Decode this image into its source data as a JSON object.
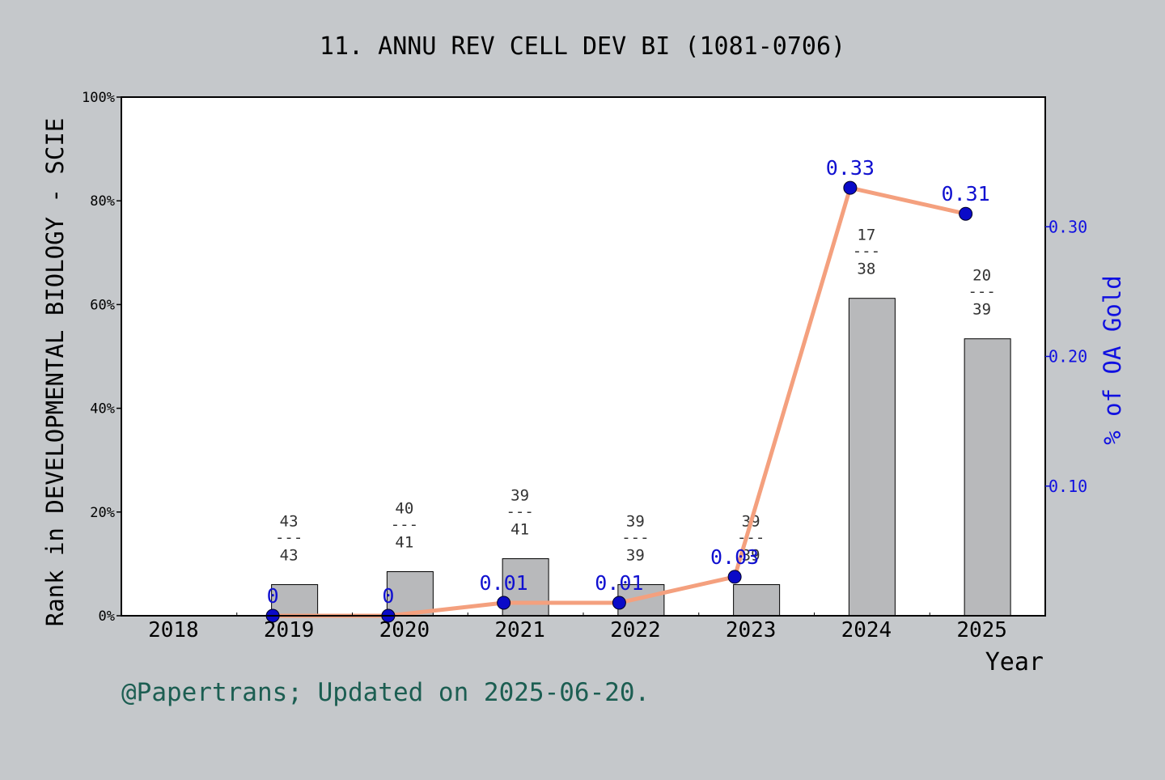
{
  "chart_data": {
    "type": "bar",
    "title": "11. ANNU REV CELL DEV BI (1081-0706)",
    "xlabel": "Year",
    "ylabel": "Rank in DEVELOPMENTAL BIOLOGY - SCIE",
    "y2label": "% of OA Gold",
    "categories": [
      "2018",
      "2019",
      "2020",
      "2021",
      "2022",
      "2023",
      "2024",
      "2025"
    ],
    "ylim": [
      0,
      100
    ],
    "y_ticks": [
      "0%",
      "20%",
      "40%",
      "60%",
      "80%",
      "100%"
    ],
    "y2lim": [
      0,
      0.4
    ],
    "y2_ticks": [
      "0.10",
      "0.20",
      "0.30"
    ],
    "y2_tick_values": [
      0.1,
      0.2,
      0.3
    ],
    "bars": {
      "values": [
        null,
        6,
        8.5,
        11,
        6,
        6,
        61.2,
        53.4
      ],
      "rank": [
        null,
        "43",
        "40",
        "39",
        "39",
        "39",
        "17",
        "20"
      ],
      "total": [
        null,
        "43",
        "41",
        "41",
        "39",
        "39",
        "38",
        "39"
      ],
      "separator": "---",
      "color": "#b8b9bb"
    },
    "line": {
      "values": [
        null,
        0,
        0,
        0.01,
        0.01,
        0.03,
        0.33,
        0.31
      ],
      "labels": [
        null,
        "0",
        "0",
        "0.01",
        "0.01",
        "0.03",
        "0.33",
        "0.31"
      ],
      "line_color": "#f4a07e",
      "marker_color": "#0a0ac8",
      "label_color": "#1010d0"
    },
    "footer": "@Papertrans; Updated on 2025-06-20.",
    "colors": {
      "background": "#c5c8cb",
      "plot_bg": "#ffffff",
      "footer": "#1c5e52",
      "axis2": "#1010e0"
    }
  }
}
